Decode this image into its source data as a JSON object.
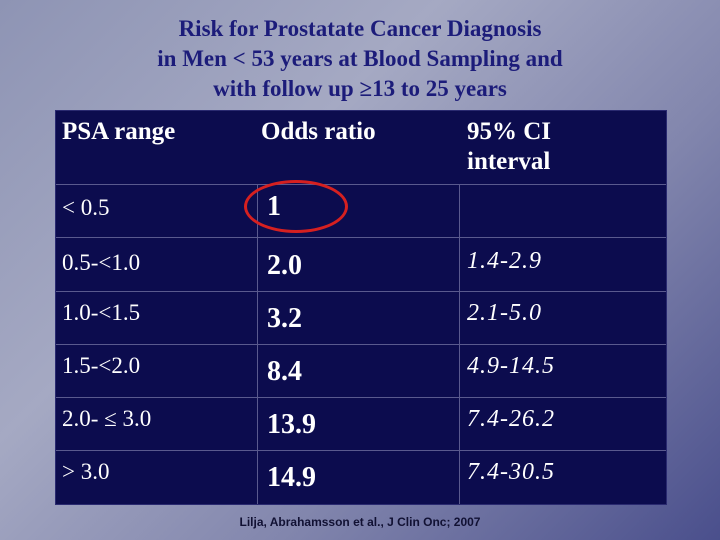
{
  "title": {
    "line1": "Risk for Prostatate Cancer Diagnosis",
    "line2": "in Men < 53 years at Blood Sampling and",
    "line3": "with follow up ≥13 to 25 years"
  },
  "table": {
    "headers": [
      "PSA range",
      "Odds ratio",
      "95% CI",
      "interval"
    ],
    "rows": [
      {
        "range": "< 0.5",
        "odds": "1",
        "ci": ""
      },
      {
        "range": "0.5-<1.0",
        "odds": "2.0",
        "ci": "1.4-2.9"
      },
      {
        "range": "1.0-<1.5",
        "odds": "3.2",
        "ci": "2.1-5.0"
      },
      {
        "range": "1.5-<2.0",
        "odds": "8.4",
        "ci": "4.9-14.5"
      },
      {
        "range": "2.0- ≤ 3.0",
        "odds": "13.9",
        "ci": "7.4-26.2"
      },
      {
        "range": ">  3.0",
        "odds": "14.9",
        "ci": "7.4-30.5"
      }
    ]
  },
  "citation": "Lilja, Abrahamsson et al., J Clin Onc; 2007",
  "colors": {
    "title": "#1c1c7a",
    "table_bg": "#0c0c4e",
    "highlight": "#d62020"
  }
}
